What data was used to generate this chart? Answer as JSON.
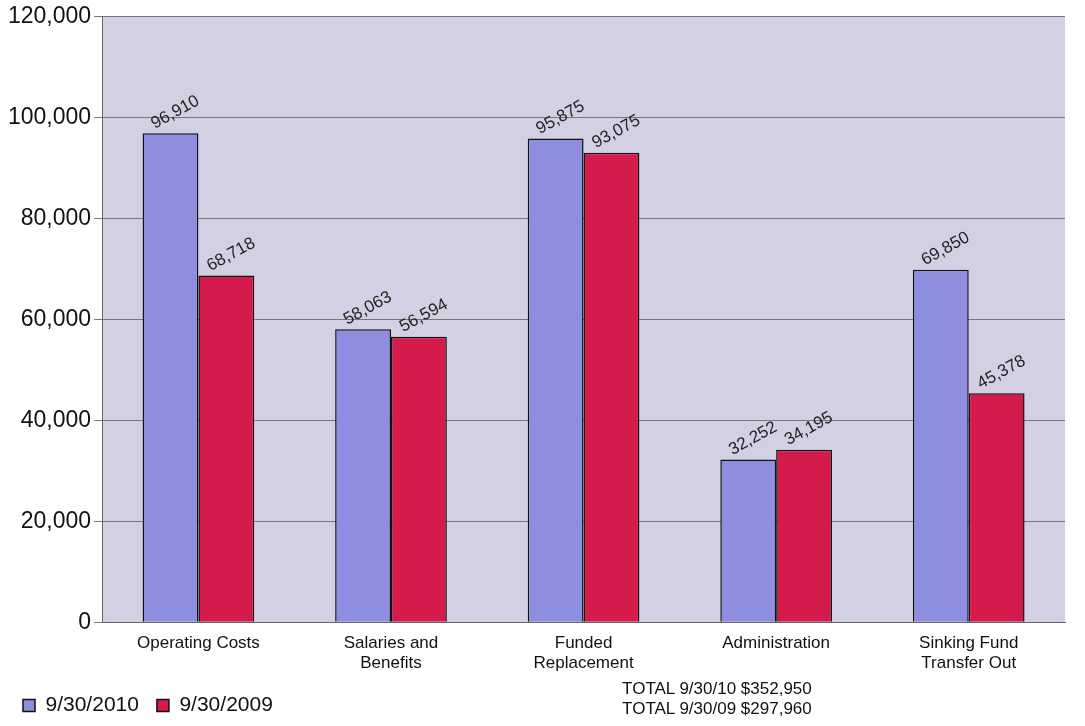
{
  "chart_data": {
    "type": "bar",
    "categories": [
      "Operating Costs",
      "Salaries and Benefits",
      "Funded Replacement",
      "Administration",
      "Sinking Fund Transfer Out"
    ],
    "series": [
      {
        "name": "9/30/2010",
        "color": "#8e8ee0",
        "values": [
          96910,
          58063,
          95875,
          32252,
          69850
        ],
        "value_labels": [
          "96,910",
          "58,063",
          "95,875",
          "32,252",
          "69,850"
        ]
      },
      {
        "name": "9/30/2009",
        "color": "#d51a4c",
        "values": [
          68718,
          56594,
          93075,
          34195,
          45378
        ],
        "value_labels": [
          "68,718",
          "56,594",
          "93,075",
          "34,195",
          "45,378"
        ]
      }
    ],
    "ylim": [
      0,
      120000
    ],
    "yticks": [
      0,
      {
        "value": 20000,
        "label": "20,000"
      },
      {
        "value": 40000,
        "label": "40,000"
      },
      {
        "value": 60000,
        "label": "60,000"
      },
      {
        "value": 80000,
        "label": "80,000"
      },
      {
        "value": 100000,
        "label": "100,000"
      },
      {
        "value": 120000,
        "label": "120,000"
      }
    ],
    "grid": "y",
    "legend": "bottom left",
    "annotations": [
      "TOTAL 9/30/10 $352,950",
      "TOTAL 9/30/09 $297,960"
    ]
  }
}
